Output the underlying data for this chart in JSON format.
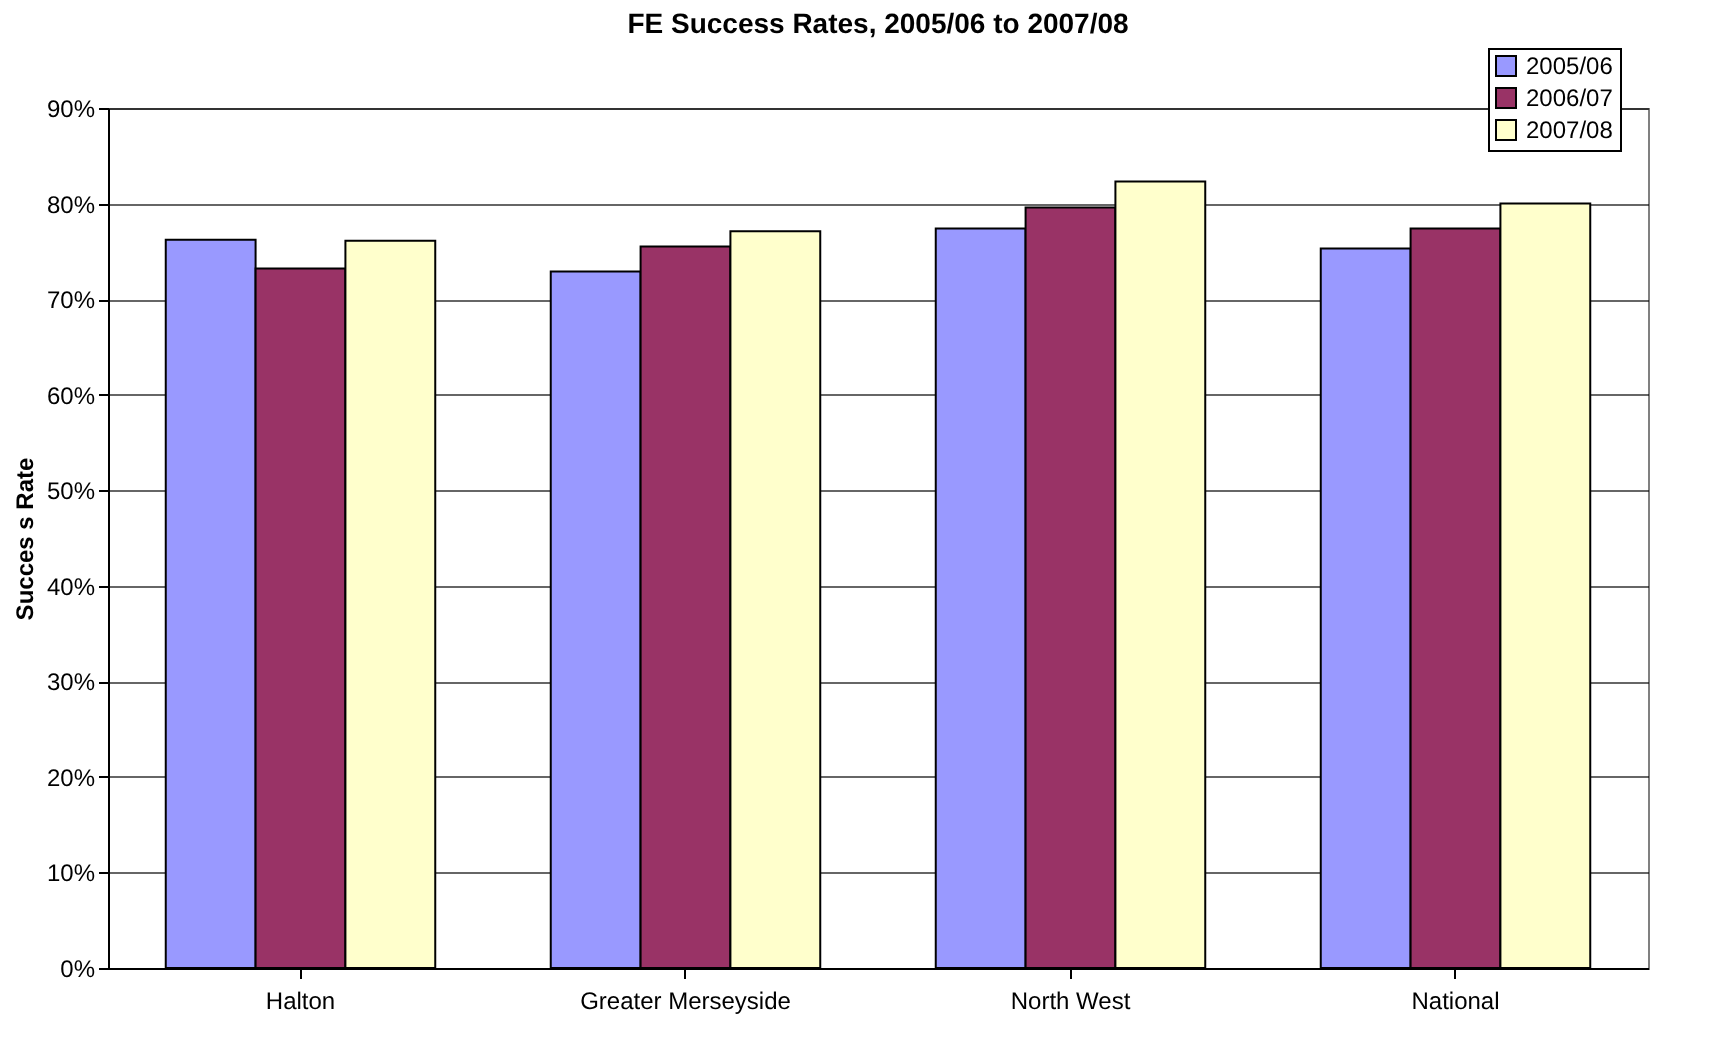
{
  "chart_data": {
    "type": "bar",
    "title": "FE Success Rates, 2005/06 to 2007/08",
    "ylabel": "Succes s Rate",
    "categories": [
      "Halton",
      "Greater Merseyside",
      "North West",
      "National"
    ],
    "series": [
      {
        "name": "2005/06",
        "color": "#9999ff",
        "values": [
          76.2,
          72.9,
          77.4,
          75.3
        ]
      },
      {
        "name": "2006/07",
        "color": "#993366",
        "values": [
          73.2,
          75.5,
          79.6,
          77.4
        ]
      },
      {
        "name": "2007/08",
        "color": "#ffffcc",
        "values": [
          76.1,
          77.1,
          82.3,
          80.0
        ]
      }
    ],
    "ylim": [
      0,
      90
    ],
    "yticks": [
      {
        "value": 0,
        "label": "0%"
      },
      {
        "value": 10,
        "label": "10%"
      },
      {
        "value": 20,
        "label": "20%"
      },
      {
        "value": 30,
        "label": "30%"
      },
      {
        "value": 40,
        "label": "40%"
      },
      {
        "value": 50,
        "label": "50%"
      },
      {
        "value": 60,
        "label": "60%"
      },
      {
        "value": 70,
        "label": "70%"
      },
      {
        "value": 80,
        "label": "80%"
      },
      {
        "value": 90,
        "label": "90%"
      }
    ],
    "grid": "y",
    "legend": "top right"
  }
}
